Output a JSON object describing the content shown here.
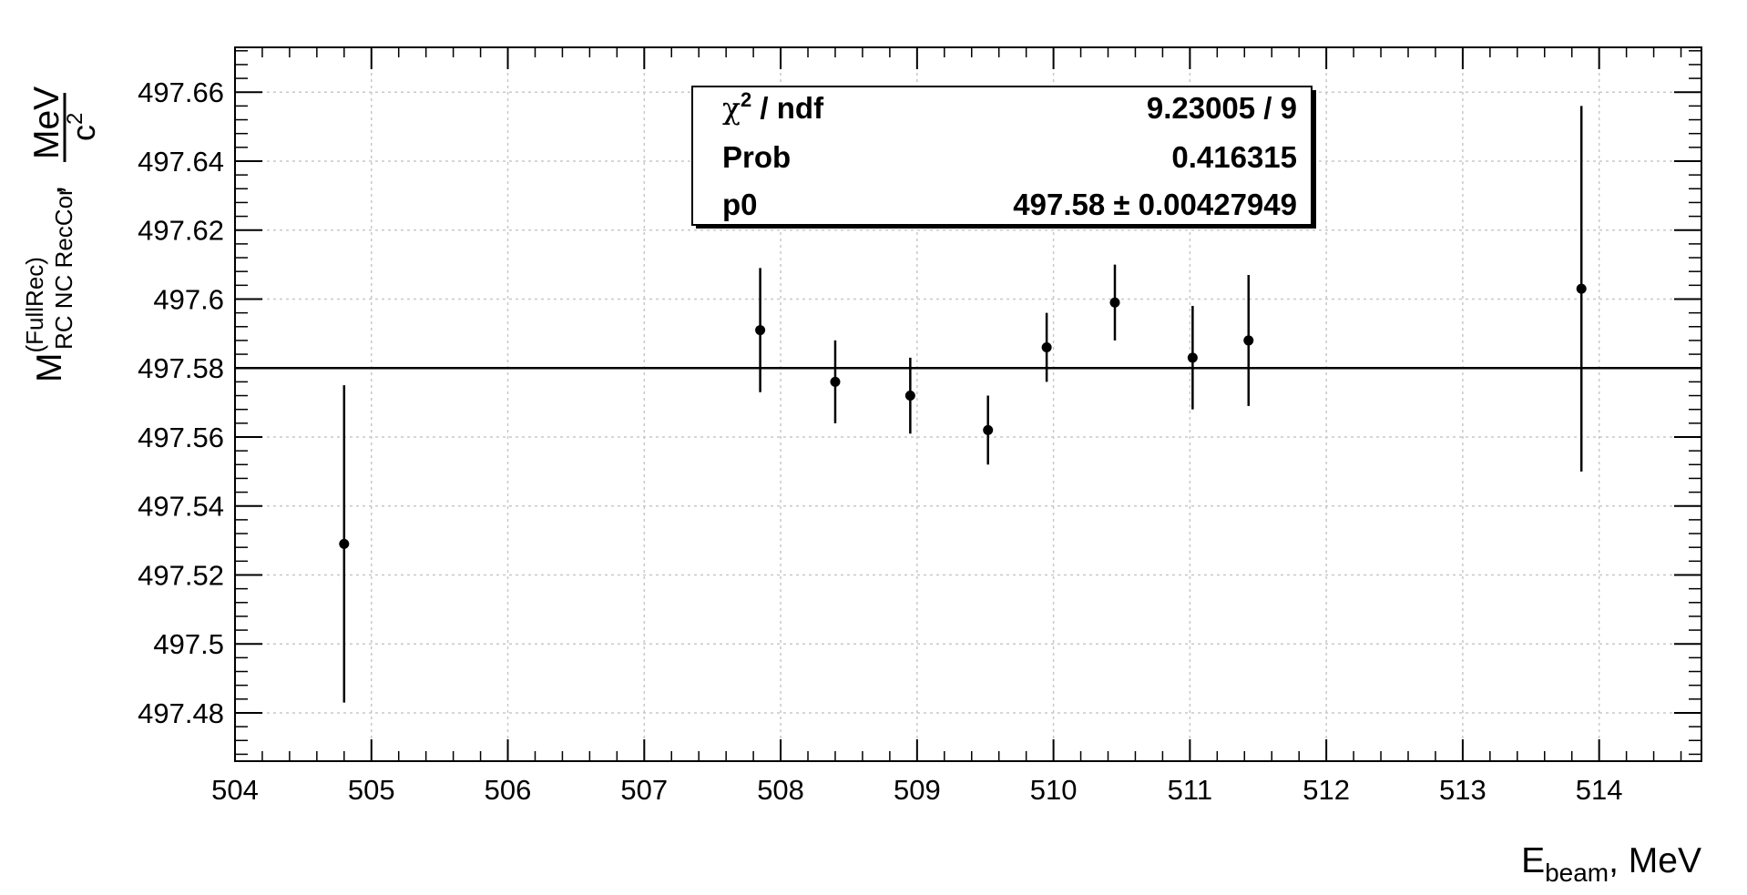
{
  "chart_data": {
    "type": "scatter",
    "xlabel": {
      "main": "E",
      "sub": "beam",
      "suffix": ", MeV"
    },
    "ylabel": {
      "main": "M",
      "sup": "(FullRec)",
      "sub": "RC NC RecCor",
      "sep": ",",
      "unit_num": "MeV",
      "unit_den_base": "c",
      "unit_den_exp": "2"
    },
    "xlim": [
      504,
      514.75
    ],
    "ylim": [
      497.466,
      497.673
    ],
    "x_ticks": [
      504,
      505,
      506,
      507,
      508,
      509,
      510,
      511,
      512,
      513,
      514
    ],
    "y_ticks": [
      497.48,
      497.5,
      497.52,
      497.54,
      497.56,
      497.58,
      497.6,
      497.62,
      497.64,
      497.66
    ],
    "x_tick_labels": [
      "504",
      "505",
      "506",
      "507",
      "508",
      "509",
      "510",
      "511",
      "512",
      "513",
      "514"
    ],
    "y_tick_labels": [
      "497.48",
      "497.5",
      "497.52",
      "497.54",
      "497.56",
      "497.58",
      "497.6",
      "497.62",
      "497.64",
      "497.66"
    ],
    "grid": true,
    "points": [
      {
        "x": 504.8,
        "y": 497.529,
        "err": 0.046
      },
      {
        "x": 507.85,
        "y": 497.591,
        "err": 0.018
      },
      {
        "x": 508.4,
        "y": 497.576,
        "err": 0.012
      },
      {
        "x": 508.95,
        "y": 497.572,
        "err": 0.011
      },
      {
        "x": 509.52,
        "y": 497.562,
        "err": 0.01
      },
      {
        "x": 509.95,
        "y": 497.586,
        "err": 0.01
      },
      {
        "x": 510.45,
        "y": 497.599,
        "err": 0.011
      },
      {
        "x": 511.02,
        "y": 497.583,
        "err": 0.015
      },
      {
        "x": 511.43,
        "y": 497.588,
        "err": 0.019
      },
      {
        "x": 513.87,
        "y": 497.603,
        "err": 0.053
      }
    ],
    "fit": {
      "function": "constant",
      "value": 497.58
    },
    "stats": {
      "rows": [
        {
          "label_main": "χ",
          "label_sup": "2",
          "label_rest": " / ndf",
          "value": "9.23005 / 9"
        },
        {
          "label_main": "Prob",
          "label_sup": "",
          "label_rest": "",
          "value": "0.416315"
        },
        {
          "label_main": "p0",
          "label_sup": "",
          "label_rest": "",
          "value": "497.58 ± 0.00427949"
        }
      ]
    }
  }
}
